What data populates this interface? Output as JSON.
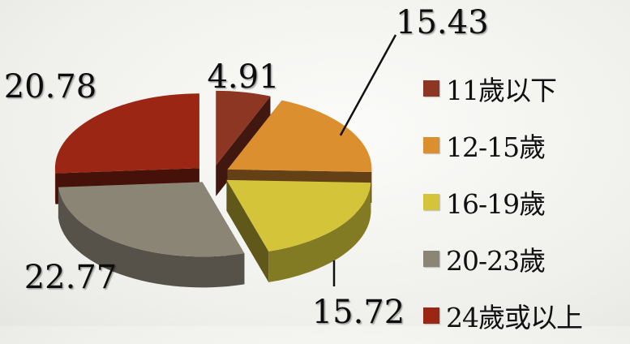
{
  "chart_data": {
    "type": "pie",
    "categories": [
      "11歲以下",
      "12-15歲",
      "16-19歲",
      "20-23歲",
      "24歲或以上"
    ],
    "values": [
      4.91,
      15.43,
      15.72,
      22.77,
      20.78
    ],
    "value_labels": [
      "4.91",
      "15.43",
      "15.72",
      "22.77",
      "20.78"
    ],
    "colors": [
      "#8e3624",
      "#db8f2f",
      "#d4c43a",
      "#8b8575",
      "#9c2614"
    ],
    "exploded": true,
    "three_d": true,
    "legend_placement": "right"
  }
}
